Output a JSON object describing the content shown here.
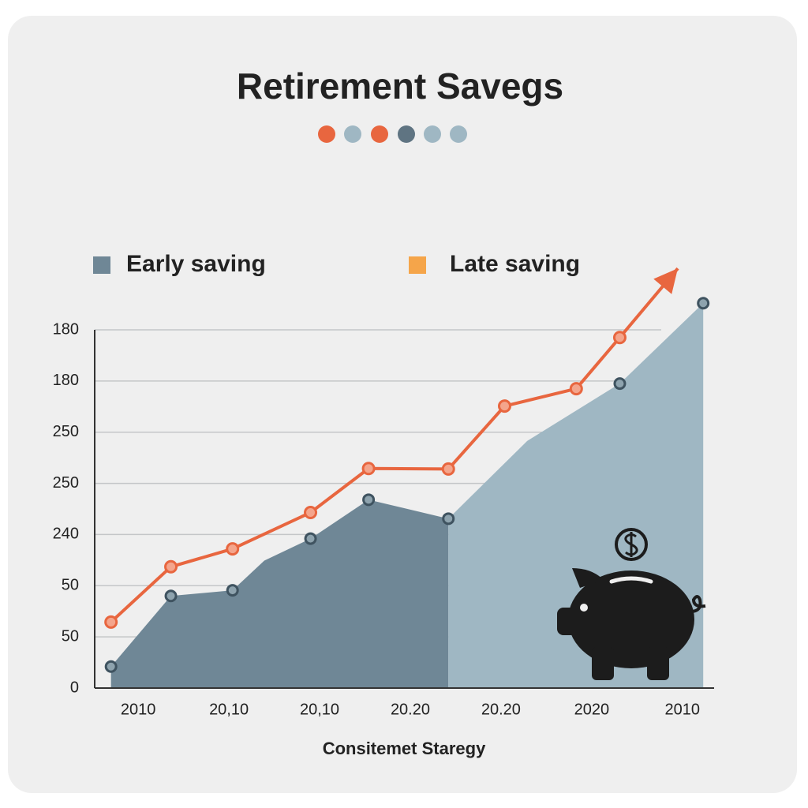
{
  "chart_data": {
    "type": "area",
    "title": "Retirement Savegs",
    "x_label": "Consitemet  Staregy",
    "xlim": [
      0.52,
      7.35
    ],
    "xticks": [
      {
        "value": 1,
        "label": "2010"
      },
      {
        "value": 2,
        "label": "20,10"
      },
      {
        "value": 3,
        "label": "20,10"
      },
      {
        "value": 4,
        "label": "20.20"
      },
      {
        "value": 5,
        "label": "20.20"
      },
      {
        "value": 6,
        "label": "2020"
      },
      {
        "value": 7,
        "label": "2010"
      }
    ],
    "ylim": [
      0,
      7
    ],
    "yticks": [
      {
        "value": 0,
        "label": "0"
      },
      {
        "value": 1,
        "label": "50"
      },
      {
        "value": 2,
        "label": "50"
      },
      {
        "value": 3,
        "label": "240"
      },
      {
        "value": 4,
        "label": "250"
      },
      {
        "value": 5,
        "label": "250"
      },
      {
        "value": 6,
        "label": "180"
      },
      {
        "value": 7,
        "label": "180"
      }
    ],
    "grid": true,
    "series": [
      {
        "name": "Early saving",
        "kind": "area",
        "color": "#6f8796",
        "legend_color": "#6f8796",
        "x": [
          0.7,
          1.36,
          2.04,
          2.39,
          2.9,
          3.54,
          4.42
        ],
        "values": [
          0.42,
          1.8,
          1.91,
          2.49,
          2.92,
          3.68,
          3.31
        ],
        "markers": [
          true,
          true,
          true,
          false,
          true,
          true,
          true
        ]
      },
      {
        "name": "Late saving",
        "kind": "area",
        "color": "#9fb7c3",
        "legend_color": "#f5a54a",
        "x": [
          4.42,
          5.29,
          6.31,
          7.23
        ],
        "values": [
          3.31,
          4.83,
          5.95,
          7.52
        ],
        "markers": [
          false,
          false,
          true,
          true
        ]
      },
      {
        "kind": "line",
        "color": "#e8663f",
        "x": [
          0.7,
          1.36,
          2.04,
          2.9,
          3.54,
          4.42,
          5.04,
          5.83,
          6.31,
          6.95
        ],
        "values": [
          1.29,
          2.37,
          2.72,
          3.43,
          4.29,
          4.28,
          5.51,
          5.85,
          6.85,
          8.2
        ],
        "markers": [
          true,
          true,
          true,
          true,
          true,
          true,
          true,
          true,
          true,
          false
        ],
        "arrow": true
      }
    ]
  }
}
